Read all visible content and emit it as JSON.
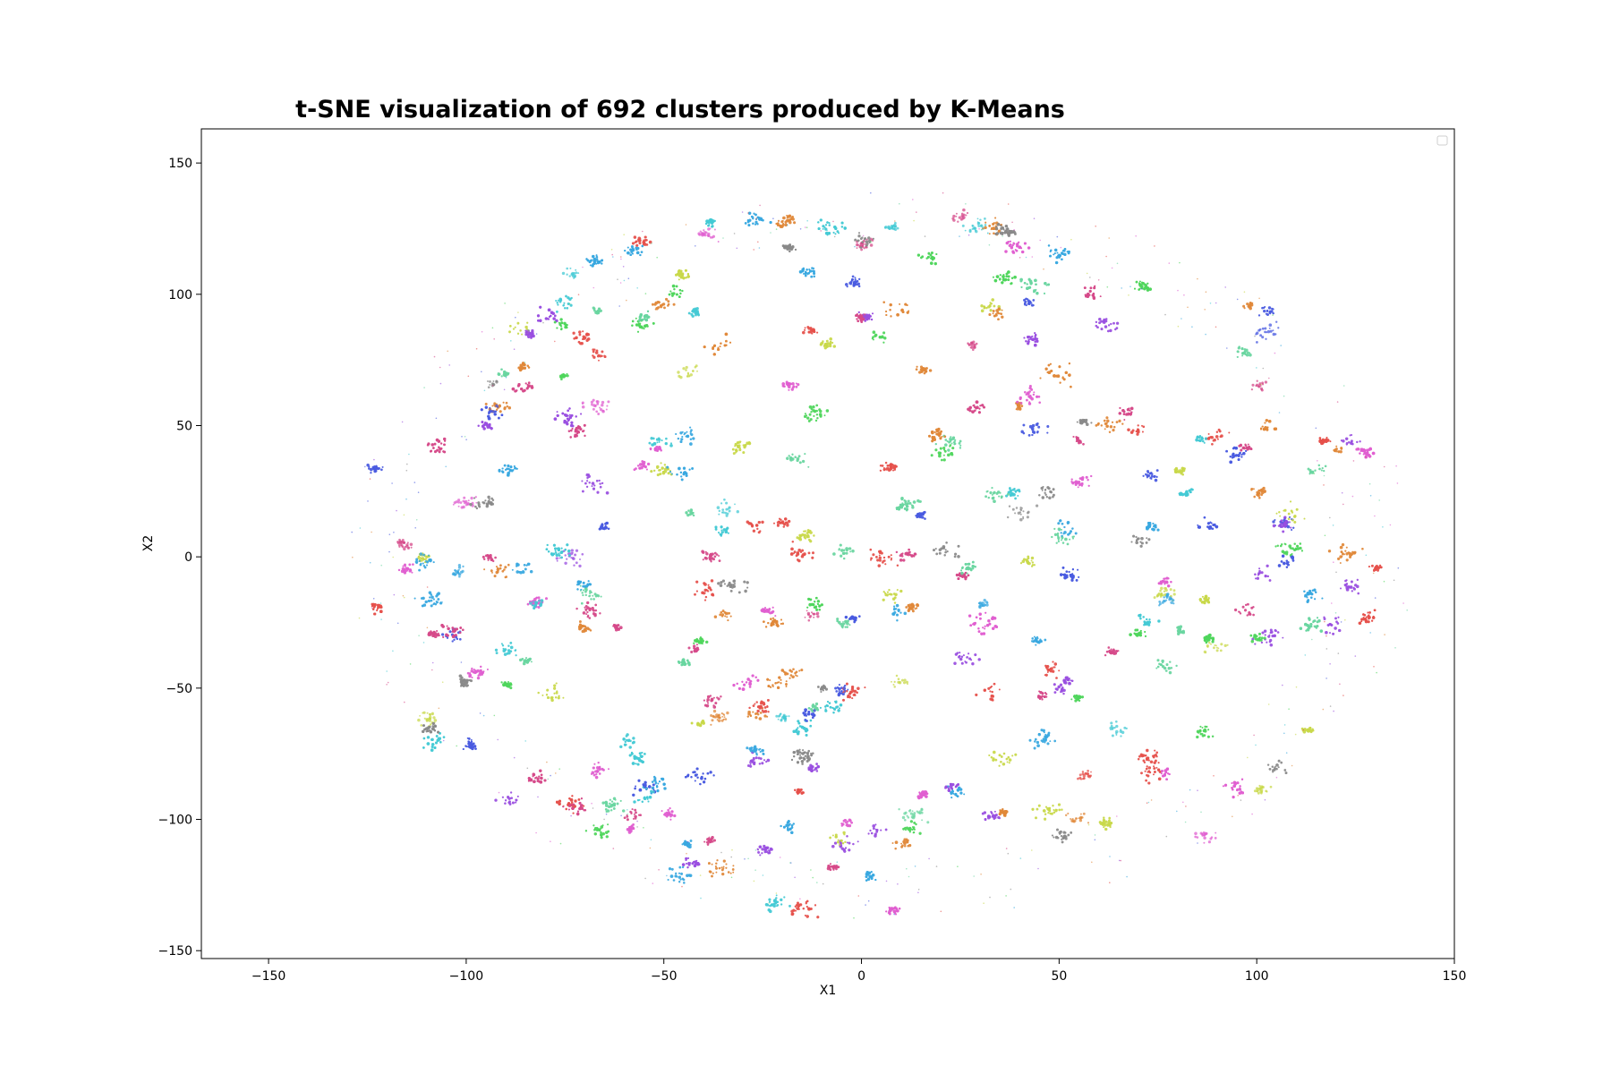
{
  "chart_data": {
    "type": "scatter",
    "title": "t-SNE visualization of 692 clusters produced by K-Means",
    "xlabel": "X1",
    "ylabel": "X2",
    "xlim": [
      -167,
      150
    ],
    "ylim": [
      -153,
      163
    ],
    "xticks": [
      -150,
      -100,
      -50,
      0,
      50,
      100,
      150
    ],
    "yticks": [
      -150,
      -100,
      -50,
      0,
      50,
      100,
      150
    ],
    "grid": false,
    "legend": "top-right (empty)",
    "n_clusters": 692,
    "point_cloud": {
      "shape": "ellipse",
      "center": [
        5,
        1
      ],
      "x_radius": 132,
      "y_radius": 137
    },
    "palette": [
      "#e6504b",
      "#4a5be0",
      "#4fd65c",
      "#44c9d4",
      "#e05fd0",
      "#9a4fe0",
      "#8a8a8a",
      "#e0883a",
      "#c8d84a",
      "#d64a8a",
      "#3aa8e0",
      "#6ad6a0"
    ]
  }
}
